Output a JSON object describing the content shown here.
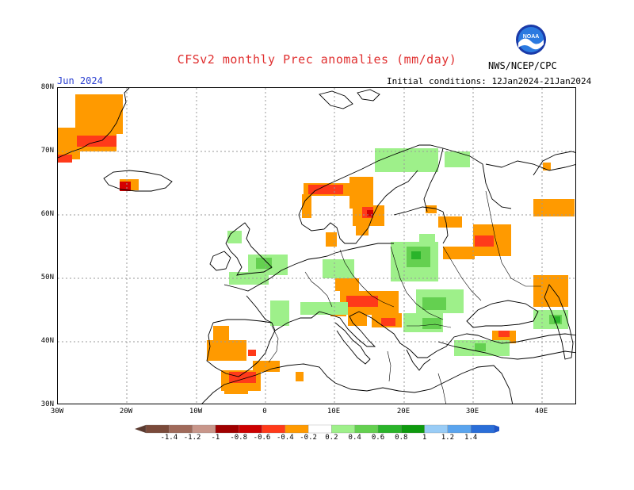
{
  "header": {
    "title": "CFSv2 monthly Prec anomalies (mm/day)",
    "month_label": "Jun 2024",
    "initial_conditions": "Initial conditions: 12Jan2024-21Jan2024",
    "agency": "NWS/NCEP/CPC",
    "logo_text": "NOAA"
  },
  "map": {
    "lat_labels": [
      "80N",
      "70N",
      "60N",
      "50N",
      "40N",
      "30N"
    ],
    "lon_labels": [
      "30W",
      "20W",
      "10W",
      "0",
      "10E",
      "20E",
      "30E",
      "40E"
    ],
    "lat_range": [
      30,
      80
    ],
    "lon_range": [
      -30,
      45
    ],
    "gridline_color": "#9a9a9a",
    "coastline_color": "#000000"
  },
  "colorbar": {
    "labels": [
      "-1.4",
      "-1.2",
      "-1",
      "-0.8",
      "-0.6",
      "-0.4",
      "-0.2",
      "0.2",
      "0.4",
      "0.6",
      "0.8",
      "1",
      "1.2",
      "1.4"
    ],
    "colors": [
      "#7a4a3a",
      "#a06a5a",
      "#c8968a",
      "#a00000",
      "#cc0000",
      "#ff3a1a",
      "#ff9a00",
      "#ffffff",
      "#9ef08a",
      "#64d050",
      "#2ab42a",
      "#0e9a0e",
      "#99ccf6",
      "#5aa4ee",
      "#2a6ed8"
    ],
    "end_left_color": "#5a3a30",
    "end_right_color": "#1f56c8"
  },
  "anomaly_colors": {
    "orange": "#ff9a00",
    "red_orange": "#ff3a1a",
    "red": "#d40000",
    "light_green": "#9ef08a",
    "green": "#64d050",
    "dark_green": "#2ab42a"
  }
}
